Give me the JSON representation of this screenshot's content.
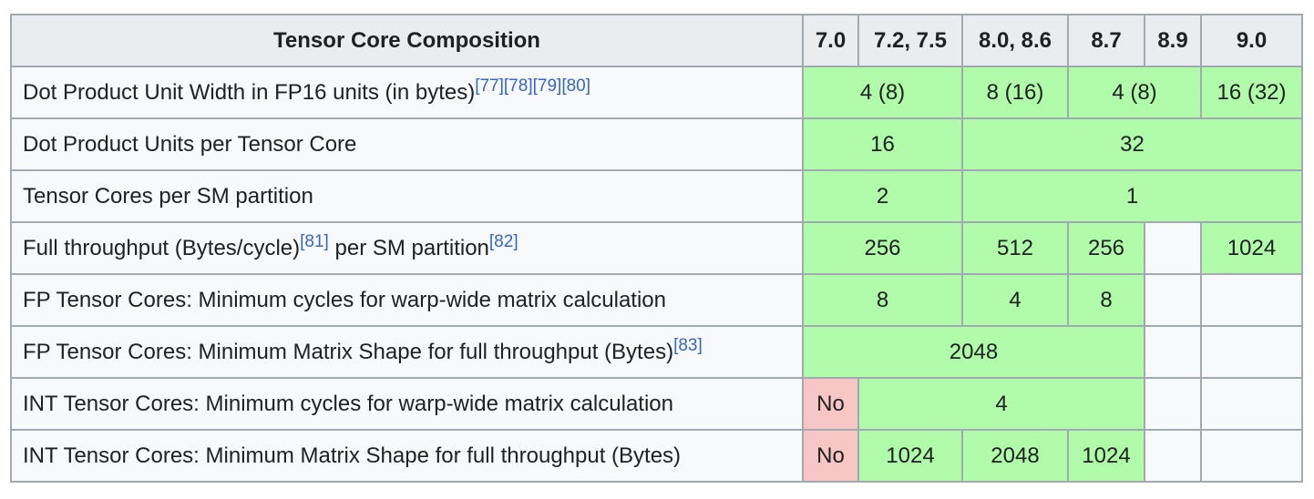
{
  "header": {
    "title": "Tensor Core Composition",
    "versions": [
      "7.0",
      "7.2, 7.5",
      "8.0, 8.6",
      "8.7",
      "8.9",
      "9.0"
    ]
  },
  "rows": [
    {
      "label": "Dot Product Unit Width in FP16 units (in bytes)",
      "refs": [
        "[77]",
        "[78]",
        "[79]",
        "[80]"
      ],
      "cells": [
        "4 (8)",
        "8 (16)",
        "4 (8)",
        "16 (32)"
      ]
    },
    {
      "label": "Dot Product Units per Tensor Core",
      "cells": [
        "16",
        "32"
      ]
    },
    {
      "label": "Tensor Cores per SM partition",
      "cells": [
        "2",
        "1"
      ]
    },
    {
      "label_a": "Full throughput (Bytes/cycle)",
      "ref_a": "[81]",
      "label_b": " per SM partition",
      "ref_b": "[82]",
      "cells": [
        "256",
        "512",
        "256",
        "1024"
      ]
    },
    {
      "label": "FP Tensor Cores: Minimum cycles for warp-wide matrix calculation",
      "cells": [
        "8",
        "4",
        "8"
      ]
    },
    {
      "label": "FP Tensor Cores: Minimum Matrix Shape for full throughput (Bytes)",
      "ref": "[83]",
      "cells": [
        "2048"
      ]
    },
    {
      "label": "INT Tensor Cores: Minimum cycles for warp-wide matrix calculation",
      "cells": [
        "No",
        "4"
      ]
    },
    {
      "label": "INT Tensor Cores: Minimum Matrix Shape for full throughput (Bytes)",
      "cells": [
        "No",
        "1024",
        "2048",
        "1024"
      ]
    }
  ],
  "colors": {
    "yes": "#b0fcaa",
    "no": "#f9c6c6",
    "header": "#eaecf0",
    "body": "#f8f9fa",
    "border": "#a2a9b1",
    "link": "#3366cc"
  }
}
